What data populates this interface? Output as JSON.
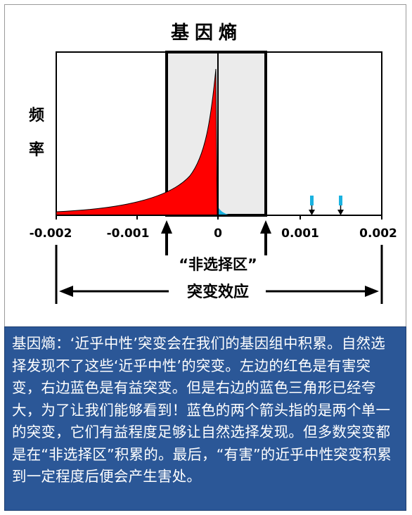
{
  "title": "基因熵",
  "y_label_line1": "频",
  "y_label_line2": "率",
  "x_ticks": [
    "-0.002",
    "-0.001",
    "0",
    "0.001",
    "0.002"
  ],
  "zone_label": "“非选择区”",
  "effect_label": "突变效应",
  "colors": {
    "deleterious": "#ff0000",
    "beneficial": "#1ab2e0",
    "zone_fill": "#ebebeb",
    "caption_bg": "#2b5797"
  },
  "caption": "基因熵：‘近乎中性’突变会在我们的基因组中积累。自然选择发现不了这些‘近乎中性’的突变。左边的红色是有害突变，右边蓝色是有益突变。但是右边的蓝色三角形已经夸大，为了让我们能够看到！蓝色的两个箭头指的是两个单一的突变，它们有益程度足够让自然选择发现。但多数突变都是在“非选择区”积累的。最后，“有害”的近乎中性突变积累到一定程度后便会产生害处。"
}
